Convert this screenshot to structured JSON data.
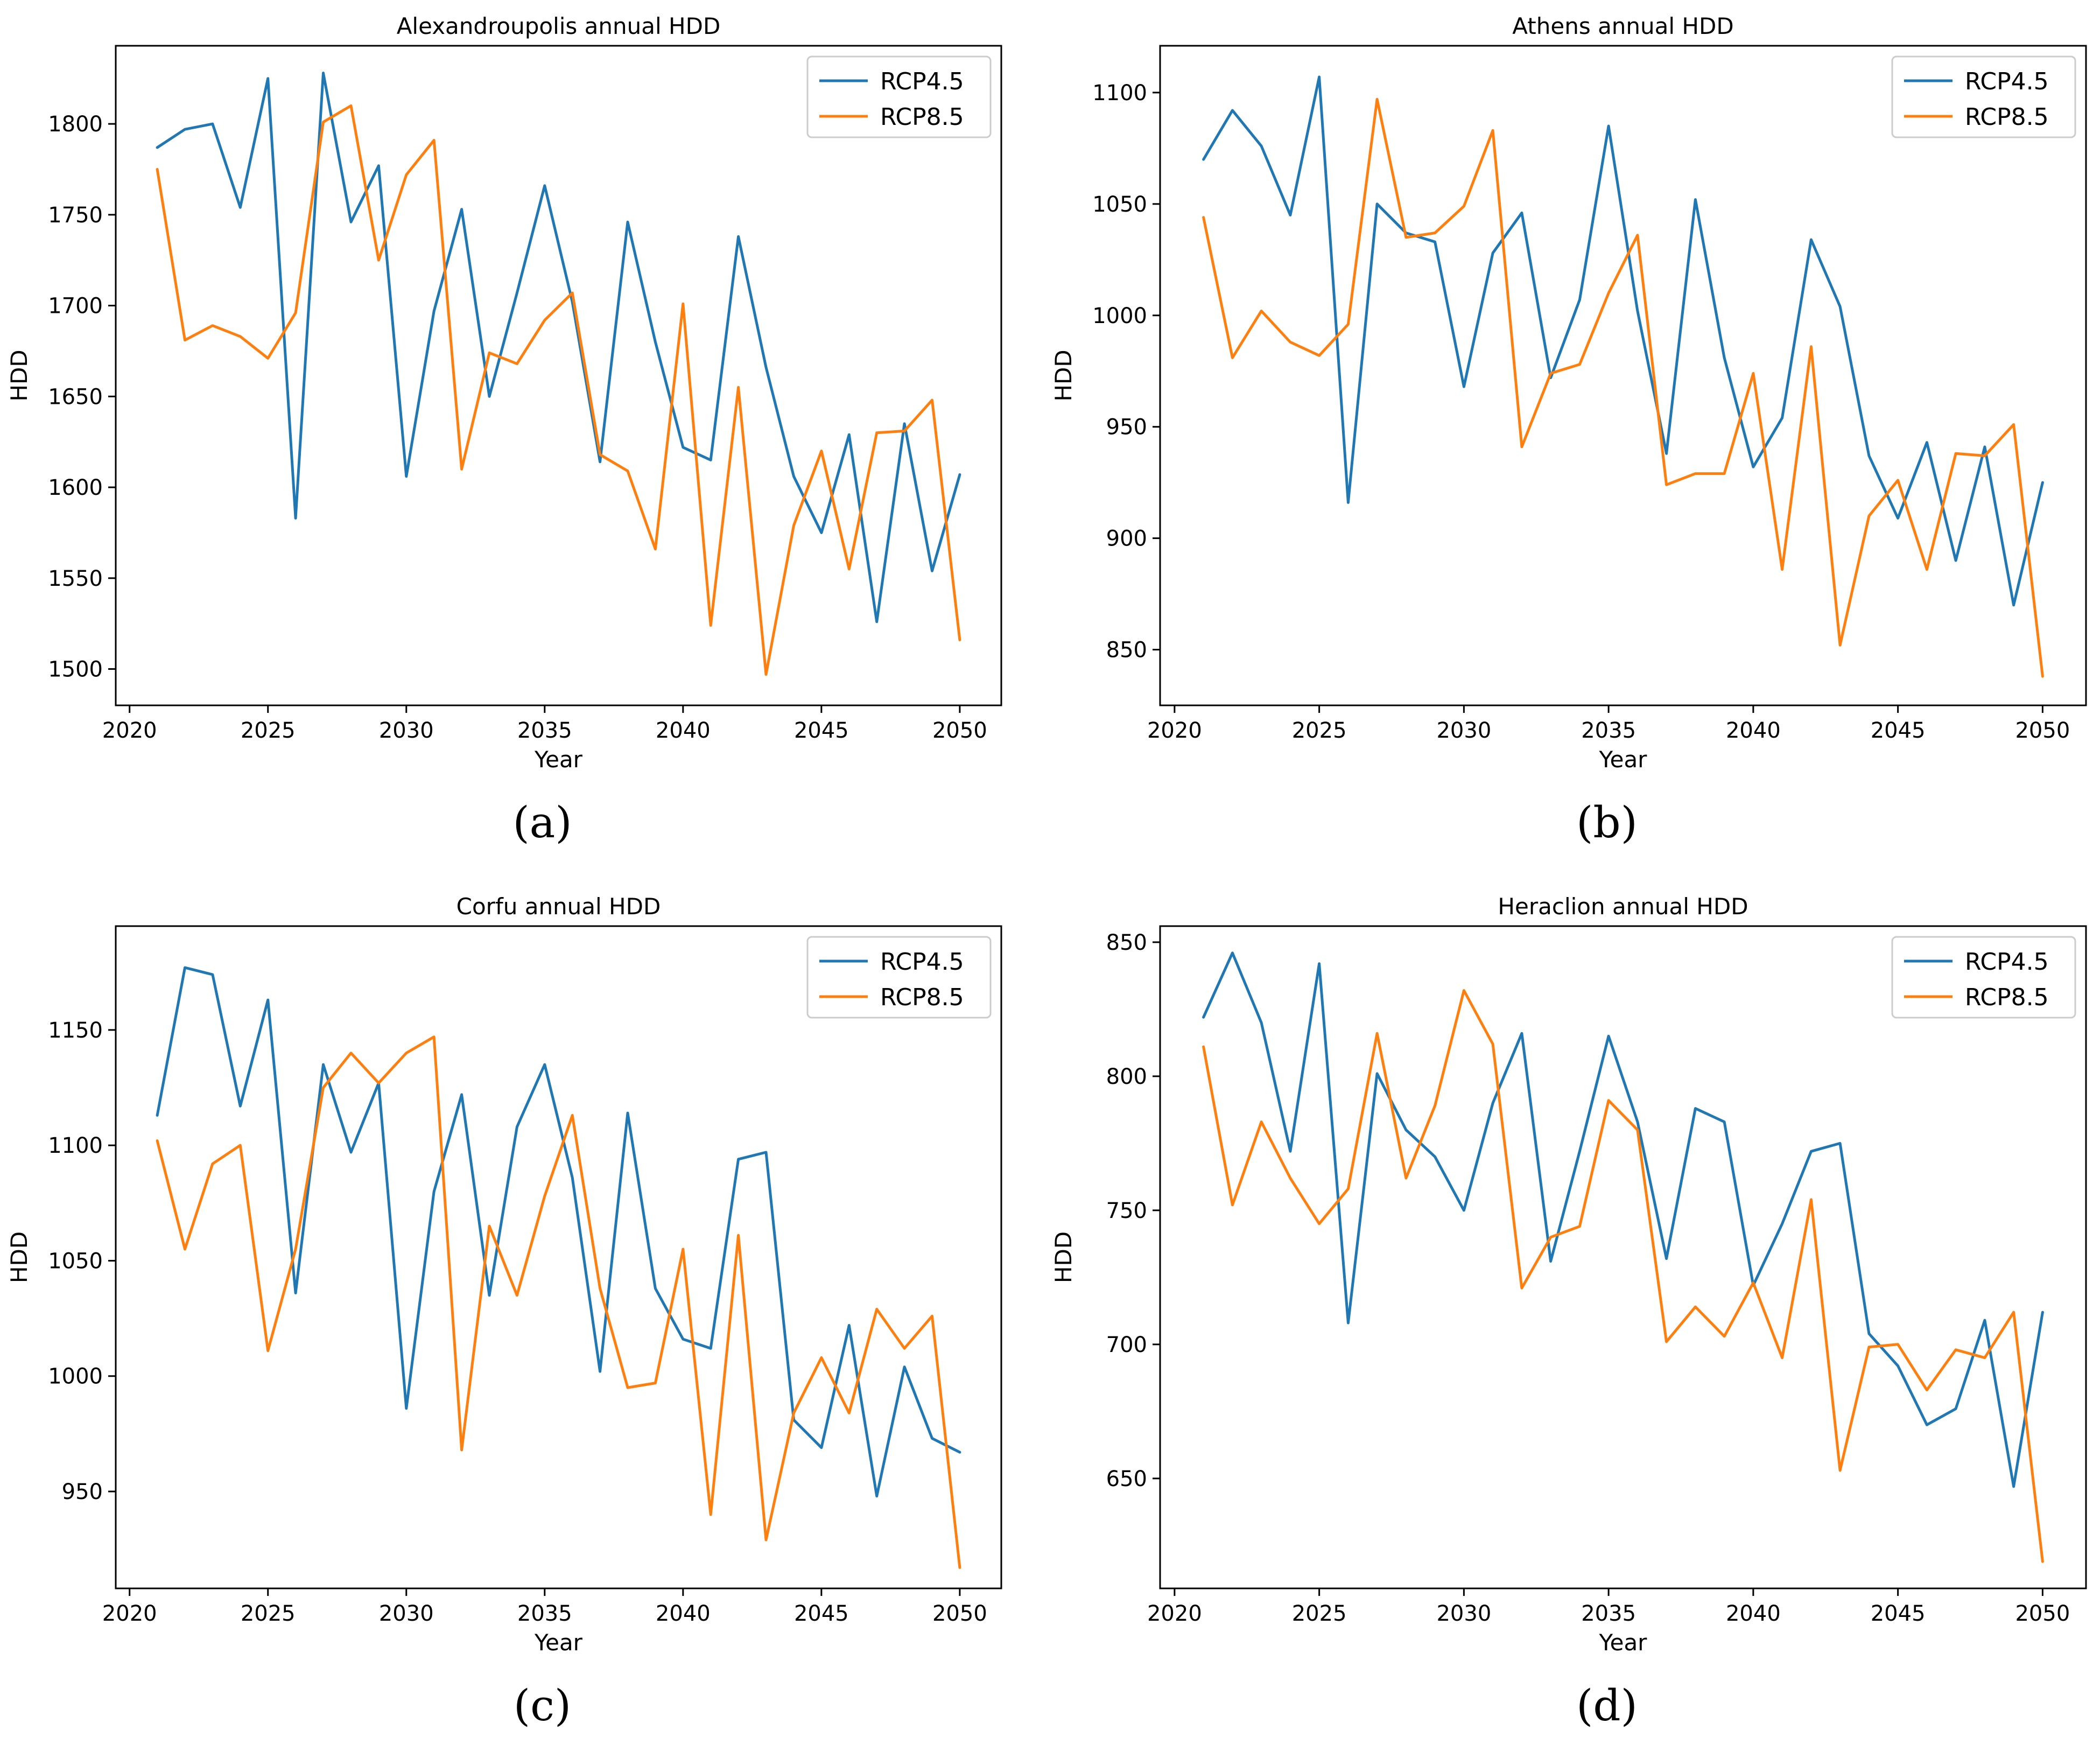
{
  "chart_data": [
    {
      "type": "line",
      "panel_label": "(a)",
      "title": "Alexandroupolis annual HDD",
      "xlabel": "Year",
      "ylabel": "HDD",
      "xlim": [
        2019.5,
        2051.5
      ],
      "ylim": [
        1480,
        1843
      ],
      "xticks": [
        2020,
        2025,
        2030,
        2035,
        2040,
        2045,
        2050
      ],
      "yticks": [
        1500,
        1550,
        1600,
        1650,
        1700,
        1750,
        1800
      ],
      "legend": "top-right",
      "x": [
        2021,
        2022,
        2023,
        2024,
        2025,
        2026,
        2027,
        2028,
        2029,
        2030,
        2031,
        2032,
        2033,
        2034,
        2035,
        2036,
        2037,
        2038,
        2039,
        2040,
        2041,
        2042,
        2043,
        2044,
        2045,
        2046,
        2047,
        2048,
        2049,
        2050
      ],
      "series": [
        {
          "name": "RCP4.5",
          "color": "#1f77b4",
          "values": [
            1787,
            1797,
            1800,
            1754,
            1825,
            1583,
            1828,
            1746,
            1777,
            1606,
            1697,
            1753,
            1650,
            1707,
            1766,
            1702,
            1614,
            1746,
            1680,
            1622,
            1615,
            1738,
            1666,
            1606,
            1575,
            1629,
            1526,
            1635,
            1554,
            1607
          ]
        },
        {
          "name": "RCP8.5",
          "color": "#ff7f0e",
          "values": [
            1775,
            1681,
            1689,
            1683,
            1671,
            1696,
            1801,
            1810,
            1725,
            1772,
            1791,
            1610,
            1674,
            1668,
            1692,
            1707,
            1618,
            1609,
            1566,
            1701,
            1524,
            1655,
            1497,
            1579,
            1620,
            1555,
            1630,
            1631,
            1648,
            1516
          ]
        }
      ]
    },
    {
      "type": "line",
      "panel_label": "(b)",
      "title": "Athens annual HDD",
      "xlabel": "Year",
      "ylabel": "HDD",
      "xlim": [
        2019.5,
        2051.5
      ],
      "ylim": [
        825,
        1121
      ],
      "xticks": [
        2020,
        2025,
        2030,
        2035,
        2040,
        2045,
        2050
      ],
      "yticks": [
        850,
        900,
        950,
        1000,
        1050,
        1100
      ],
      "legend": "top-right",
      "x": [
        2021,
        2022,
        2023,
        2024,
        2025,
        2026,
        2027,
        2028,
        2029,
        2030,
        2031,
        2032,
        2033,
        2034,
        2035,
        2036,
        2037,
        2038,
        2039,
        2040,
        2041,
        2042,
        2043,
        2044,
        2045,
        2046,
        2047,
        2048,
        2049,
        2050
      ],
      "series": [
        {
          "name": "RCP4.5",
          "color": "#1f77b4",
          "values": [
            1070,
            1092,
            1076,
            1045,
            1107,
            916,
            1050,
            1037,
            1033,
            968,
            1028,
            1046,
            972,
            1007,
            1085,
            1002,
            938,
            1052,
            981,
            932,
            954,
            1034,
            1004,
            937,
            909,
            943,
            890,
            941,
            870,
            925
          ]
        },
        {
          "name": "RCP8.5",
          "color": "#ff7f0e",
          "values": [
            1044,
            981,
            1002,
            988,
            982,
            996,
            1097,
            1035,
            1037,
            1049,
            1083,
            941,
            974,
            978,
            1010,
            1036,
            924,
            929,
            929,
            974,
            886,
            986,
            852,
            910,
            926,
            886,
            938,
            937,
            951,
            838
          ]
        }
      ]
    },
    {
      "type": "line",
      "panel_label": "(c)",
      "title": "Corfu annual HDD",
      "xlabel": "Year",
      "ylabel": "HDD",
      "xlim": [
        2019.5,
        2051.5
      ],
      "ylim": [
        908,
        1195
      ],
      "xticks": [
        2020,
        2025,
        2030,
        2035,
        2040,
        2045,
        2050
      ],
      "yticks": [
        950,
        1000,
        1050,
        1100,
        1150
      ],
      "legend": "top-right",
      "x": [
        2021,
        2022,
        2023,
        2024,
        2025,
        2026,
        2027,
        2028,
        2029,
        2030,
        2031,
        2032,
        2033,
        2034,
        2035,
        2036,
        2037,
        2038,
        2039,
        2040,
        2041,
        2042,
        2043,
        2044,
        2045,
        2046,
        2047,
        2048,
        2049,
        2050
      ],
      "series": [
        {
          "name": "RCP4.5",
          "color": "#1f77b4",
          "values": [
            1113,
            1177,
            1174,
            1117,
            1163,
            1036,
            1135,
            1097,
            1127,
            986,
            1080,
            1122,
            1035,
            1108,
            1135,
            1086,
            1002,
            1114,
            1038,
            1016,
            1012,
            1094,
            1097,
            981,
            969,
            1022,
            948,
            1004,
            973,
            967
          ]
        },
        {
          "name": "RCP8.5",
          "color": "#ff7f0e",
          "values": [
            1102,
            1055,
            1092,
            1100,
            1011,
            1055,
            1125,
            1140,
            1127,
            1140,
            1147,
            968,
            1065,
            1035,
            1078,
            1113,
            1038,
            995,
            997,
            1055,
            940,
            1061,
            929,
            984,
            1008,
            984,
            1029,
            1012,
            1026,
            917
          ]
        }
      ]
    },
    {
      "type": "line",
      "panel_label": "(d)",
      "title": "Heraclion annual HDD",
      "xlabel": "Year",
      "ylabel": "HDD",
      "xlim": [
        2019.5,
        2051.5
      ],
      "ylim": [
        609,
        856
      ],
      "xticks": [
        2020,
        2025,
        2030,
        2035,
        2040,
        2045,
        2050
      ],
      "yticks": [
        650,
        700,
        750,
        800,
        850
      ],
      "legend": "top-right",
      "x": [
        2021,
        2022,
        2023,
        2024,
        2025,
        2026,
        2027,
        2028,
        2029,
        2030,
        2031,
        2032,
        2033,
        2034,
        2035,
        2036,
        2037,
        2038,
        2039,
        2040,
        2041,
        2042,
        2043,
        2044,
        2045,
        2046,
        2047,
        2048,
        2049,
        2050
      ],
      "series": [
        {
          "name": "RCP4.5",
          "color": "#1f77b4",
          "values": [
            822,
            846,
            820,
            772,
            842,
            708,
            801,
            780,
            770,
            750,
            790,
            816,
            731,
            772,
            815,
            783,
            732,
            788,
            783,
            722,
            745,
            772,
            775,
            704,
            692,
            670,
            676,
            709,
            647,
            712
          ]
        },
        {
          "name": "RCP8.5",
          "color": "#ff7f0e",
          "values": [
            811,
            752,
            783,
            762,
            745,
            758,
            816,
            762,
            789,
            832,
            812,
            721,
            740,
            744,
            791,
            780,
            701,
            714,
            703,
            723,
            695,
            754,
            653,
            699,
            700,
            683,
            698,
            695,
            712,
            619
          ]
        }
      ]
    }
  ]
}
